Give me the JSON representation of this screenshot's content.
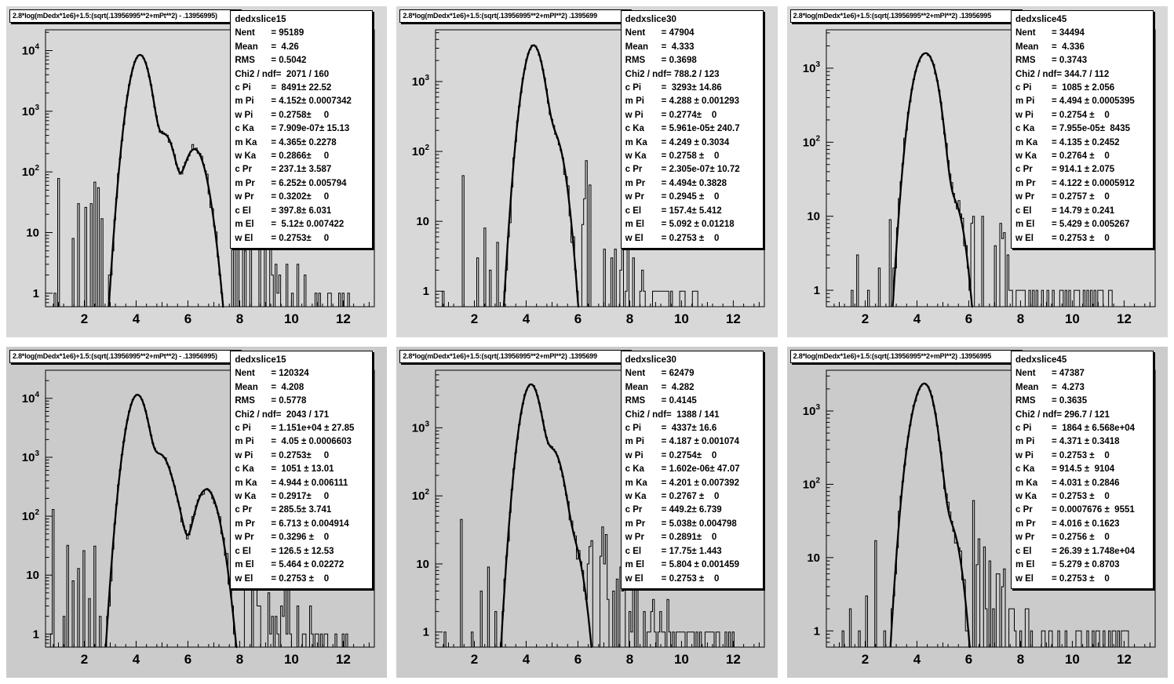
{
  "colors": {
    "canvas_bg": "#ffffff",
    "pad_bg_top_row": "#d8d8d8",
    "pad_bg_bottom_row": "#cbcbcb",
    "ink": "#000000",
    "box_bg": "#ffffff"
  },
  "chart_data": {
    "type": "bar",
    "subtype": "root-canvas 2x3 log-y histograms with multi-gaussian fit overlays",
    "x_axis": {
      "tick_labels": [
        2,
        4,
        6,
        8,
        10,
        12
      ],
      "range": [
        0.5,
        13.2
      ],
      "minor_step": 0.4
    },
    "y_axis": {
      "scale": "log",
      "min": 0.6
    },
    "bin_width": 0.07,
    "panels": [
      {
        "title": "2.8*log(mDedx*1e6)+1.5:(sqrt(.13956995**2+mPt**2) - .13956995)",
        "hist_name": "dedxslice15",
        "ymax": 22000,
        "stats": [
          {
            "l": "Nent",
            "v": "= 95189"
          },
          {
            "l": "Mean",
            "v": "=  4.26"
          },
          {
            "l": "RMS",
            "v": "= 0.5042"
          },
          {
            "l": "Chi2 / ndf",
            "v": "=  2071 / 160"
          },
          {
            "l": "c Pi",
            "v": "=  8491± 22.52"
          },
          {
            "l": "m Pi",
            "v": "= 4.152± 0.0007342"
          },
          {
            "l": "w Pi",
            "v": "= 0.2758±     0"
          },
          {
            "l": "c Ka",
            "v": "= 7.909e-07± 15.13"
          },
          {
            "l": "m Ka",
            "v": "= 4.365± 0.2278"
          },
          {
            "l": "w Ka",
            "v": "= 0.2866±     0"
          },
          {
            "l": "c Pr",
            "v": "= 237.1± 3.587"
          },
          {
            "l": "m Pr",
            "v": "= 6.252± 0.005794"
          },
          {
            "l": "w Pr",
            "v": "= 0.3202±     0"
          },
          {
            "l": "c El",
            "v": "= 397.8± 6.031"
          },
          {
            "l": "m El",
            "v": "=  5.12± 0.007422"
          },
          {
            "l": "w El",
            "v": "= 0.2753±     0"
          }
        ],
        "fit": {
          "pi": [
            8491,
            4.152,
            0.2758
          ],
          "ka": [
            7.909e-07,
            4.365,
            0.2866
          ],
          "pr": [
            237.1,
            6.252,
            0.3202
          ],
          "el": [
            397.8,
            5.12,
            0.2753
          ]
        },
        "noise": {
          "seed": 7,
          "spikes": [
            [
              0.8,
              1
            ],
            [
              1.0,
              78
            ],
            [
              1.55,
              8
            ],
            [
              1.75,
              30
            ],
            [
              2.0,
              26
            ],
            [
              2.2,
              30
            ],
            [
              2.35,
              68
            ],
            [
              2.5,
              55
            ],
            [
              2.62,
              17
            ]
          ],
          "tail": {
            "x0": 7.55,
            "h0": 35,
            "la": 1.25,
            "xend": 12.3,
            "p": 0.45
          }
        }
      },
      {
        "title": "2.8*log(mDedx*1e6)+1.5:(sqrt(.13956995**2+mPI**2)  .1395699",
        "hist_name": "dedxslice30",
        "ymax": 5500,
        "stats": [
          {
            "l": "Nent",
            "v": "= 47904"
          },
          {
            "l": "Mean",
            "v": "=  4.333"
          },
          {
            "l": "RMS",
            "v": "= 0.3698"
          },
          {
            "l": "Chi2 / ndf",
            "v": "= 788.2 / 123"
          },
          {
            "l": "c Pi",
            "v": "=  3293± 14.86"
          },
          {
            "l": "m Pi",
            "v": "= 4.288 ± 0.001293"
          },
          {
            "l": "w Pi",
            "v": "= 0.2774±    0"
          },
          {
            "l": "c Ka",
            "v": "= 5.961e-05± 240.7"
          },
          {
            "l": "m Ka",
            "v": "= 4.249 ± 0.3034"
          },
          {
            "l": "w Ka",
            "v": "= 0.2758 ±    0"
          },
          {
            "l": "c Pr",
            "v": "= 2.305e-07± 10.72"
          },
          {
            "l": "m Pr",
            "v": "= 4.494± 0.3828"
          },
          {
            "l": "w Pr",
            "v": "= 0.2945 ±    0"
          },
          {
            "l": "c El",
            "v": "= 157.4± 5.412"
          },
          {
            "l": "m El",
            "v": "= 5.092 ± 0.01218"
          },
          {
            "l": "w El",
            "v": "= 0.2753 ±    0"
          }
        ],
        "fit": {
          "pi": [
            3293,
            4.288,
            0.2774
          ],
          "ka": [
            5.961e-05,
            4.249,
            0.2758
          ],
          "pr": [
            2.305e-07,
            4.494,
            0.2945
          ],
          "el": [
            157.4,
            5.092,
            0.2753
          ]
        },
        "noise": {
          "seed": 11,
          "spikes": [
            [
              0.78,
              1
            ],
            [
              1.5,
              45
            ],
            [
              2.1,
              3
            ],
            [
              2.35,
              8
            ],
            [
              2.6,
              2
            ],
            [
              2.85,
              5
            ]
          ],
          "tail": {
            "x0": 6.05,
            "h0": 30,
            "la": 1.3,
            "xend": 10.6,
            "p": 0.55
          }
        }
      },
      {
        "title": "2.8*log(mDedx*1e6)+1.5:(sqrt(.13956995**2+mPI**2)  .13956995",
        "hist_name": "dedxslice45",
        "ymax": 3300,
        "stats": [
          {
            "l": "Nent",
            "v": "= 34494"
          },
          {
            "l": "Mean",
            "v": "=  4.336"
          },
          {
            "l": "RMS",
            "v": "= 0.3743"
          },
          {
            "l": "Chi2 / ndf",
            "v": "= 344.7 / 112"
          },
          {
            "l": "c Pi",
            "v": "=  1085 ± 2.056"
          },
          {
            "l": "m Pi",
            "v": "= 4.494 ± 0.0005395"
          },
          {
            "l": "w Pi",
            "v": "= 0.2754 ±    0"
          },
          {
            "l": "c Ka",
            "v": "= 7.955e-05±  8435"
          },
          {
            "l": "m Ka",
            "v": "= 4.135 ± 0.2452"
          },
          {
            "l": "w Ka",
            "v": "= 0.2764 ±    0"
          },
          {
            "l": "c Pr",
            "v": "= 914.1 ± 2.075"
          },
          {
            "l": "m Pr",
            "v": "= 4.122 ± 0.0005912"
          },
          {
            "l": "w Pr",
            "v": "= 0.2757 ±    0"
          },
          {
            "l": "c El",
            "v": "= 14.79 ± 0.241"
          },
          {
            "l": "m El",
            "v": "= 5.429 ± 0.005267"
          },
          {
            "l": "w El",
            "v": "= 0.2753 ±    0"
          }
        ],
        "fit": {
          "pi": [
            1085,
            4.494,
            0.2754
          ],
          "ka": [
            7.955e-05,
            4.135,
            0.2764
          ],
          "pr": [
            914.1,
            4.122,
            0.2757
          ],
          "el": [
            14.79,
            5.429,
            0.2753
          ]
        },
        "noise": {
          "seed": 23,
          "spikes": [
            [
              1.45,
              1
            ],
            [
              1.7,
              3
            ],
            [
              2.1,
              1
            ],
            [
              2.5,
              2
            ],
            [
              2.9,
              9
            ]
          ],
          "tail": {
            "x0": 6.0,
            "h0": 16,
            "la": 1.5,
            "xend": 11.6,
            "p": 0.45
          }
        }
      },
      {
        "title": "2.8*log(mDedx*1e6)+1.5:(sqrt(.13956995**2+mPt**2) - .13956995)",
        "hist_name": "dedxslice15",
        "ymax": 30000,
        "stats": [
          {
            "l": "Nent",
            "v": "= 120324"
          },
          {
            "l": "Mean",
            "v": "=  4.208"
          },
          {
            "l": "RMS",
            "v": "= 0.5778"
          },
          {
            "l": "Chi2 / ndf",
            "v": "=  2043 / 171"
          },
          {
            "l": "c Pi",
            "v": "= 1.151e+04 ± 27.85"
          },
          {
            "l": "m Pi",
            "v": "=  4.05 ± 0.0006603"
          },
          {
            "l": "w Pi",
            "v": "= 0.2753±     0"
          },
          {
            "l": "c Ka",
            "v": "=  1051 ± 13.01"
          },
          {
            "l": "m Ka",
            "v": "= 4.944 ± 0.006111"
          },
          {
            "l": "w Ka",
            "v": "= 0.2917±     0"
          },
          {
            "l": "c Pr",
            "v": "= 285.5± 3.741"
          },
          {
            "l": "m Pr",
            "v": "= 6.713 ± 0.004914"
          },
          {
            "l": "w Pr",
            "v": "= 0.3296 ±    0"
          },
          {
            "l": "c El",
            "v": "= 126.5 ± 12.53"
          },
          {
            "l": "m El",
            "v": "= 5.464 ± 0.02272"
          },
          {
            "l": "w El",
            "v": "= 0.2753 ±    0"
          }
        ],
        "fit": {
          "pi": [
            11510,
            4.05,
            0.2753
          ],
          "ka": [
            1051,
            4.944,
            0.2917
          ],
          "pr": [
            285.5,
            6.713,
            0.3296
          ],
          "el": [
            126.5,
            5.464,
            0.2753
          ]
        },
        "noise": {
          "seed": 5,
          "spikes": [
            [
              0.68,
              1
            ],
            [
              0.74,
              130
            ],
            [
              1.15,
              2
            ],
            [
              1.35,
              32
            ],
            [
              1.55,
              8
            ],
            [
              1.75,
              13
            ],
            [
              1.95,
              26
            ],
            [
              2.15,
              4
            ],
            [
              2.35,
              31
            ],
            [
              2.6,
              2
            ]
          ],
          "tail": {
            "x0": 8.2,
            "h0": 10,
            "la": 1.0,
            "xend": 12.3,
            "p": 0.45
          }
        }
      },
      {
        "title": "2.8*log(mDedx*1e6)+1.5:(sqrt(.13956995**2+mPI**2)  .1395699",
        "hist_name": "dedxslice30",
        "ymax": 7000,
        "stats": [
          {
            "l": "Nent",
            "v": "= 62479"
          },
          {
            "l": "Mean",
            "v": "=  4.282"
          },
          {
            "l": "RMS",
            "v": "= 0.4145"
          },
          {
            "l": "Chi2 / ndf",
            "v": "=  1388 / 141"
          },
          {
            "l": "c Pi",
            "v": "=  4337± 16.6"
          },
          {
            "l": "m Pi",
            "v": "= 4.187 ± 0.001074"
          },
          {
            "l": "w Pi",
            "v": "= 0.2754±    0"
          },
          {
            "l": "c Ka",
            "v": "= 1.602e-06± 47.07"
          },
          {
            "l": "m Ka",
            "v": "= 4.201 ± 0.007392"
          },
          {
            "l": "w Ka",
            "v": "= 0.2767 ±    0"
          },
          {
            "l": "c Pr",
            "v": "= 449.2± 6.739"
          },
          {
            "l": "m Pr",
            "v": "= 5.038± 0.004798"
          },
          {
            "l": "w Pr",
            "v": "= 0.2891±    0"
          },
          {
            "l": "c El",
            "v": "= 17.75± 1.443"
          },
          {
            "l": "m El",
            "v": "= 5.804 ± 0.001459"
          },
          {
            "l": "w El",
            "v": "= 0.2753 ±    0"
          }
        ],
        "fit": {
          "pi": [
            4337,
            4.187,
            0.2754
          ],
          "ka": [
            1.602e-06,
            4.201,
            0.2767
          ],
          "pr": [
            449.2,
            5.038,
            0.2891
          ],
          "el": [
            17.75,
            5.804,
            0.2753
          ]
        },
        "noise": {
          "seed": 17,
          "spikes": [
            [
              0.8,
              1
            ],
            [
              1.45,
              45
            ],
            [
              1.9,
              1
            ],
            [
              2.2,
              4
            ],
            [
              2.5,
              9
            ],
            [
              2.8,
              2
            ]
          ],
          "tail": {
            "x0": 6.35,
            "h0": 35,
            "la": 1.2,
            "xend": 12.2,
            "p": 0.55
          }
        }
      },
      {
        "title": "2.8*log(mDedx*1e6)+1.5:(sqrt(.13956995**2+mPI**2)  .13956995",
        "hist_name": "dedxslice45",
        "ymax": 3600,
        "stats": [
          {
            "l": "Nent",
            "v": "= 47387"
          },
          {
            "l": "Mean",
            "v": "=  4.273"
          },
          {
            "l": "RMS",
            "v": "= 0.3635"
          },
          {
            "l": "Chi2 / ndf",
            "v": "= 296.7 / 121"
          },
          {
            "l": "c Pi",
            "v": "=  1864 ± 6.568e+04"
          },
          {
            "l": "m Pi",
            "v": "= 4.371 ± 0.3418"
          },
          {
            "l": "w Pi",
            "v": "= 0.2753 ±    0"
          },
          {
            "l": "c Ka",
            "v": "= 914.5 ±  9104"
          },
          {
            "l": "m Ka",
            "v": "= 4.031 ± 0.2846"
          },
          {
            "l": "w Ka",
            "v": "= 0.2753 ±    0"
          },
          {
            "l": "c Pr",
            "v": "= 0.0007676 ±  9551"
          },
          {
            "l": "m Pr",
            "v": "= 4.016 ± 0.1623"
          },
          {
            "l": "w Pr",
            "v": "= 0.2756 ±    0"
          },
          {
            "l": "c El",
            "v": "= 26.39 ± 1.748e+04"
          },
          {
            "l": "m El",
            "v": "= 5.279 ± 0.8703"
          },
          {
            "l": "w El",
            "v": "= 0.2753 ±    0"
          }
        ],
        "fit": {
          "pi": [
            1864,
            4.371,
            0.2753
          ],
          "ka": [
            914.5,
            4.031,
            0.2753
          ],
          "pr": [
            0.0007676,
            4.016,
            0.2756
          ],
          "el": [
            26.39,
            5.279,
            0.2753
          ]
        },
        "noise": {
          "seed": 29,
          "spikes": [
            [
              1.1,
              1
            ],
            [
              1.4,
              2
            ],
            [
              1.75,
              1
            ],
            [
              2.05,
              3
            ],
            [
              2.35,
              17
            ],
            [
              2.7,
              1
            ]
          ],
          "tail": {
            "x0": 6.1,
            "h0": 20,
            "la": 1.4,
            "xend": 12.2,
            "p": 0.5
          }
        }
      }
    ]
  }
}
